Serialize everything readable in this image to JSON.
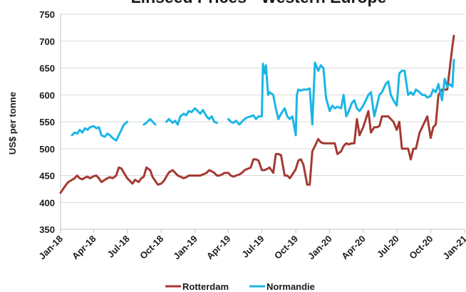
{
  "chart_data": {
    "type": "line",
    "title": "Linseed Prices - Western Europe",
    "xlabel": "",
    "ylabel": "US$ per tonne",
    "ylim": [
      350,
      750
    ],
    "yticks": [
      350,
      400,
      450,
      500,
      550,
      600,
      650,
      700,
      750
    ],
    "x_start": "2018-01",
    "x_end": "2021-01",
    "xtick_labels": [
      "Jan-18",
      "Apr-18",
      "Jul-18",
      "Oct-18",
      "Jan-19",
      "Apr-19",
      "Jul-19",
      "Oct-19",
      "Jan-20",
      "Apr-20",
      "Jul-20",
      "Oct-20",
      "Jan-21"
    ],
    "grid": "horizontal",
    "legend_position": "bottom",
    "series": [
      {
        "name": "Rotterdam",
        "color": "#a43a32",
        "points": [
          [
            "2018-01-01",
            418
          ],
          [
            "2018-01-08",
            425
          ],
          [
            "2018-01-15",
            432
          ],
          [
            "2018-01-22",
            438
          ],
          [
            "2018-02-01",
            442
          ],
          [
            "2018-02-08",
            445
          ],
          [
            "2018-02-15",
            450
          ],
          [
            "2018-02-22",
            445
          ],
          [
            "2018-03-01",
            443
          ],
          [
            "2018-03-08",
            446
          ],
          [
            "2018-03-15",
            448
          ],
          [
            "2018-03-22",
            445
          ],
          [
            "2018-04-01",
            449
          ],
          [
            "2018-04-08",
            450
          ],
          [
            "2018-04-15",
            445
          ],
          [
            "2018-04-22",
            438
          ],
          [
            "2018-05-01",
            442
          ],
          [
            "2018-05-08",
            445
          ],
          [
            "2018-05-15",
            447
          ],
          [
            "2018-05-22",
            445
          ],
          [
            "2018-06-01",
            450
          ],
          [
            "2018-06-08",
            465
          ],
          [
            "2018-06-15",
            463
          ],
          [
            "2018-06-22",
            455
          ],
          [
            "2018-07-01",
            445
          ],
          [
            "2018-07-08",
            440
          ],
          [
            "2018-07-15",
            435
          ],
          [
            "2018-07-22",
            442
          ],
          [
            "2018-08-01",
            438
          ],
          [
            "2018-08-08",
            445
          ],
          [
            "2018-08-15",
            448
          ],
          [
            "2018-08-22",
            465
          ],
          [
            "2018-09-01",
            460
          ],
          [
            "2018-09-08",
            447
          ],
          [
            "2018-09-15",
            440
          ],
          [
            "2018-09-22",
            433
          ],
          [
            "2018-10-01",
            435
          ],
          [
            "2018-10-08",
            440
          ],
          [
            "2018-10-15",
            448
          ],
          [
            "2018-10-22",
            456
          ],
          [
            "2018-11-01",
            460
          ],
          [
            "2018-11-08",
            455
          ],
          [
            "2018-11-15",
            450
          ],
          [
            "2018-11-22",
            448
          ],
          [
            "2018-12-01",
            445
          ],
          [
            "2018-12-08",
            447
          ],
          [
            "2018-12-15",
            450
          ],
          [
            "2018-12-22",
            450
          ],
          [
            "2019-01-01",
            450
          ],
          [
            "2019-01-08",
            450
          ],
          [
            "2019-01-15",
            450
          ],
          [
            "2019-01-22",
            452
          ],
          [
            "2019-02-01",
            455
          ],
          [
            "2019-02-08",
            460
          ],
          [
            "2019-02-15",
            458
          ],
          [
            "2019-02-22",
            455
          ],
          [
            "2019-03-01",
            450
          ],
          [
            "2019-03-08",
            450
          ],
          [
            "2019-03-15",
            452
          ],
          [
            "2019-03-22",
            455
          ],
          [
            "2019-04-01",
            455
          ],
          [
            "2019-04-08",
            450
          ],
          [
            "2019-04-15",
            448
          ],
          [
            "2019-04-22",
            450
          ],
          [
            "2019-05-01",
            452
          ],
          [
            "2019-05-08",
            455
          ],
          [
            "2019-05-15",
            460
          ],
          [
            "2019-05-22",
            462
          ],
          [
            "2019-06-01",
            465
          ],
          [
            "2019-06-08",
            480
          ],
          [
            "2019-06-15",
            480
          ],
          [
            "2019-06-22",
            478
          ],
          [
            "2019-07-01",
            460
          ],
          [
            "2019-07-08",
            460
          ],
          [
            "2019-07-15",
            462
          ],
          [
            "2019-07-22",
            465
          ],
          [
            "2019-08-01",
            455
          ],
          [
            "2019-08-08",
            490
          ],
          [
            "2019-08-15",
            490
          ],
          [
            "2019-08-22",
            488
          ],
          [
            "2019-09-01",
            450
          ],
          [
            "2019-09-08",
            450
          ],
          [
            "2019-09-15",
            445
          ],
          [
            "2019-09-22",
            452
          ],
          [
            "2019-10-01",
            462
          ],
          [
            "2019-10-08",
            478
          ],
          [
            "2019-10-15",
            480
          ],
          [
            "2019-10-22",
            470
          ],
          [
            "2019-11-01",
            433
          ],
          [
            "2019-11-08",
            433
          ],
          [
            "2019-11-15",
            495
          ],
          [
            "2019-11-22",
            505
          ],
          [
            "2019-12-01",
            518
          ],
          [
            "2019-12-08",
            512
          ],
          [
            "2019-12-15",
            510
          ],
          [
            "2019-12-22",
            510
          ],
          [
            "2020-01-01",
            510
          ],
          [
            "2020-01-08",
            510
          ],
          [
            "2020-01-15",
            510
          ],
          [
            "2020-01-22",
            490
          ],
          [
            "2020-02-01",
            495
          ],
          [
            "2020-02-08",
            505
          ],
          [
            "2020-02-15",
            510
          ],
          [
            "2020-02-22",
            508
          ],
          [
            "2020-03-01",
            510
          ],
          [
            "2020-03-08",
            510
          ],
          [
            "2020-03-15",
            555
          ],
          [
            "2020-03-22",
            525
          ],
          [
            "2020-04-01",
            540
          ],
          [
            "2020-04-08",
            555
          ],
          [
            "2020-04-15",
            570
          ],
          [
            "2020-04-22",
            530
          ],
          [
            "2020-05-01",
            540
          ],
          [
            "2020-05-08",
            540
          ],
          [
            "2020-05-15",
            542
          ],
          [
            "2020-05-22",
            560
          ],
          [
            "2020-06-01",
            560
          ],
          [
            "2020-06-08",
            560
          ],
          [
            "2020-06-15",
            555
          ],
          [
            "2020-06-22",
            550
          ],
          [
            "2020-07-01",
            535
          ],
          [
            "2020-07-08",
            550
          ],
          [
            "2020-07-15",
            500
          ],
          [
            "2020-07-22",
            500
          ],
          [
            "2020-08-01",
            500
          ],
          [
            "2020-08-08",
            480
          ],
          [
            "2020-08-15",
            500
          ],
          [
            "2020-08-22",
            500
          ],
          [
            "2020-09-01",
            530
          ],
          [
            "2020-09-08",
            540
          ],
          [
            "2020-09-15",
            550
          ],
          [
            "2020-09-22",
            560
          ],
          [
            "2020-10-01",
            520
          ],
          [
            "2020-10-08",
            540
          ],
          [
            "2020-10-15",
            545
          ],
          [
            "2020-10-22",
            600
          ],
          [
            "2020-11-01",
            610
          ],
          [
            "2020-11-08",
            610
          ],
          [
            "2020-11-15",
            610
          ],
          [
            "2020-11-22",
            650
          ],
          [
            "2020-11-29",
            690
          ],
          [
            "2020-12-03",
            710
          ]
        ]
      },
      {
        "name": "Normandie",
        "color": "#1bb5e6",
        "points": [
          [
            "2018-02-01",
            525
          ],
          [
            "2018-02-08",
            530
          ],
          [
            "2018-02-15",
            528
          ],
          [
            "2018-02-22",
            535
          ],
          [
            "2018-03-01",
            530
          ],
          [
            "2018-03-08",
            538
          ],
          [
            "2018-03-15",
            535
          ],
          [
            "2018-03-22",
            540
          ],
          [
            "2018-04-01",
            542
          ],
          [
            "2018-04-08",
            538
          ],
          [
            "2018-04-15",
            540
          ],
          [
            "2018-04-22",
            525
          ],
          [
            "2018-05-01",
            522
          ],
          [
            "2018-05-08",
            528
          ],
          [
            "2018-05-15",
            525
          ],
          [
            "2018-05-22",
            520
          ],
          [
            "2018-06-01",
            515
          ],
          [
            "2018-06-08",
            525
          ],
          [
            "2018-06-15",
            535
          ],
          [
            "2018-06-22",
            545
          ],
          [
            "2018-07-01",
            550
          ],
          [
            null,
            null
          ],
          [
            "2018-08-15",
            545
          ],
          [
            "2018-08-22",
            548
          ],
          [
            "2018-09-01",
            555
          ],
          [
            "2018-09-08",
            550
          ],
          [
            "2018-09-15",
            545
          ],
          [
            null,
            null
          ],
          [
            "2018-10-15",
            550
          ],
          [
            "2018-10-22",
            555
          ],
          [
            "2018-11-01",
            548
          ],
          [
            "2018-11-08",
            552
          ],
          [
            "2018-11-15",
            545
          ],
          [
            "2018-11-22",
            560
          ],
          [
            "2018-12-01",
            565
          ],
          [
            "2018-12-08",
            562
          ],
          [
            "2018-12-15",
            570
          ],
          [
            "2018-12-22",
            568
          ],
          [
            "2019-01-01",
            575
          ],
          [
            "2019-01-08",
            570
          ],
          [
            "2019-01-15",
            565
          ],
          [
            "2019-01-22",
            572
          ],
          [
            "2019-02-01",
            560
          ],
          [
            "2019-02-08",
            555
          ],
          [
            "2019-02-15",
            560
          ],
          [
            "2019-02-22",
            550
          ],
          [
            "2019-03-01",
            548
          ],
          [
            null,
            null
          ],
          [
            "2019-04-01",
            555
          ],
          [
            "2019-04-08",
            550
          ],
          [
            "2019-04-15",
            548
          ],
          [
            "2019-04-22",
            552
          ],
          [
            "2019-05-01",
            545
          ],
          [
            "2019-05-08",
            550
          ],
          [
            "2019-05-15",
            555
          ],
          [
            "2019-05-22",
            558
          ],
          [
            "2019-06-01",
            560
          ],
          [
            "2019-06-08",
            562
          ],
          [
            "2019-06-15",
            555
          ],
          [
            "2019-06-22",
            560
          ],
          [
            "2019-07-01",
            560
          ],
          [
            "2019-07-04",
            658
          ],
          [
            "2019-07-08",
            640
          ],
          [
            "2019-07-12",
            655
          ],
          [
            "2019-07-18",
            600
          ],
          [
            "2019-07-22",
            605
          ],
          [
            "2019-08-01",
            600
          ],
          [
            "2019-08-08",
            575
          ],
          [
            "2019-08-15",
            555
          ],
          [
            "2019-08-22",
            565
          ],
          [
            "2019-09-01",
            575
          ],
          [
            "2019-09-08",
            560
          ],
          [
            "2019-09-15",
            555
          ],
          [
            "2019-09-22",
            560
          ],
          [
            "2019-10-01",
            525
          ],
          [
            "2019-10-04",
            600
          ],
          [
            "2019-10-08",
            610
          ],
          [
            "2019-10-15",
            608
          ],
          [
            "2019-10-22",
            610
          ],
          [
            "2019-11-01",
            610
          ],
          [
            "2019-11-08",
            612
          ],
          [
            "2019-11-15",
            545
          ],
          [
            "2019-11-22",
            660
          ],
          [
            "2019-12-01",
            645
          ],
          [
            "2019-12-08",
            655
          ],
          [
            "2019-12-15",
            650
          ],
          [
            "2019-12-22",
            595
          ],
          [
            "2020-01-01",
            570
          ],
          [
            "2020-01-08",
            580
          ],
          [
            "2020-01-15",
            575
          ],
          [
            "2020-01-22",
            578
          ],
          [
            "2020-02-01",
            575
          ],
          [
            "2020-02-08",
            600
          ],
          [
            "2020-02-15",
            560
          ],
          [
            "2020-02-22",
            570
          ],
          [
            "2020-03-01",
            585
          ],
          [
            "2020-03-08",
            590
          ],
          [
            "2020-03-15",
            575
          ],
          [
            "2020-03-22",
            570
          ],
          [
            "2020-04-01",
            580
          ],
          [
            "2020-04-08",
            590
          ],
          [
            "2020-04-15",
            600
          ],
          [
            "2020-04-22",
            605
          ],
          [
            "2020-05-01",
            560
          ],
          [
            "2020-05-08",
            580
          ],
          [
            "2020-05-15",
            600
          ],
          [
            "2020-05-22",
            605
          ],
          [
            "2020-06-01",
            620
          ],
          [
            "2020-06-08",
            625
          ],
          [
            "2020-06-15",
            600
          ],
          [
            "2020-06-22",
            590
          ],
          [
            "2020-07-01",
            580
          ],
          [
            "2020-07-08",
            640
          ],
          [
            "2020-07-15",
            645
          ],
          [
            "2020-07-22",
            645
          ],
          [
            "2020-08-01",
            600
          ],
          [
            "2020-08-08",
            605
          ],
          [
            "2020-08-15",
            600
          ],
          [
            "2020-08-22",
            610
          ],
          [
            "2020-09-01",
            605
          ],
          [
            "2020-09-08",
            600
          ],
          [
            "2020-09-15",
            600
          ],
          [
            "2020-09-22",
            595
          ],
          [
            "2020-10-01",
            598
          ],
          [
            "2020-10-08",
            610
          ],
          [
            "2020-10-15",
            605
          ],
          [
            "2020-10-22",
            620
          ],
          [
            "2020-11-01",
            590
          ],
          [
            "2020-11-08",
            630
          ],
          [
            "2020-11-15",
            615
          ],
          [
            "2020-11-22",
            620
          ],
          [
            "2020-11-29",
            615
          ],
          [
            "2020-12-03",
            665
          ]
        ]
      }
    ]
  }
}
